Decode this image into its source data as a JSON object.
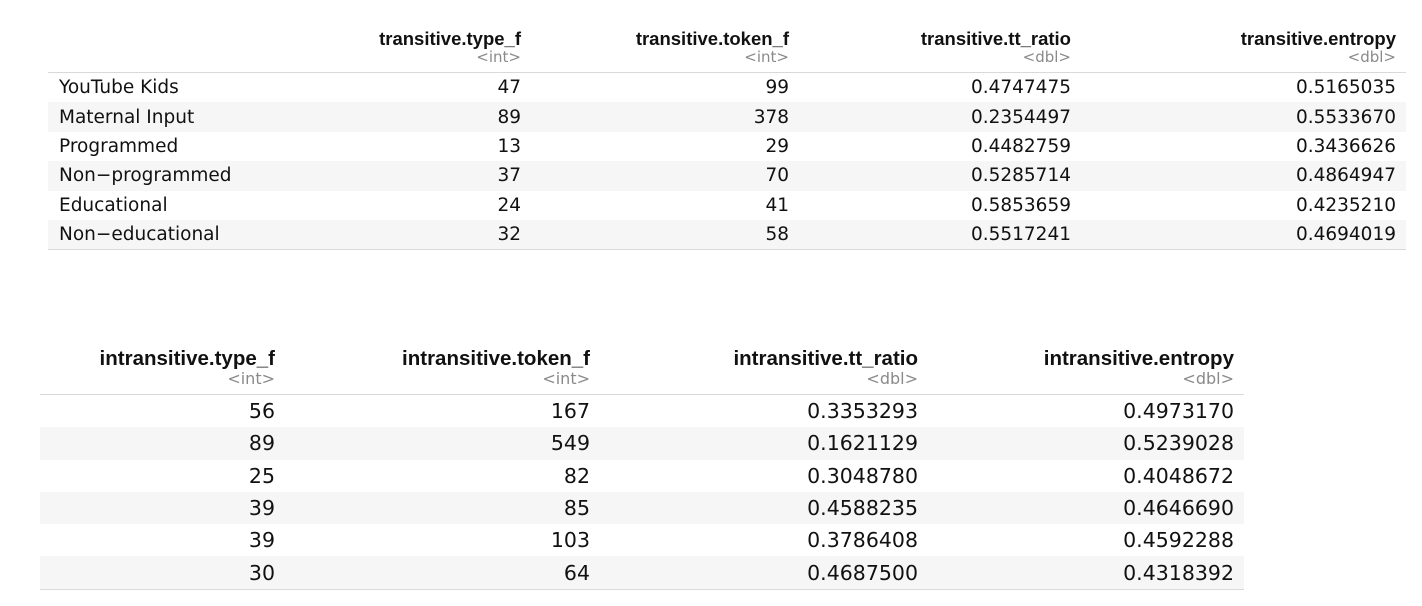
{
  "table1": {
    "columns": [
      {
        "name": "",
        "type": ""
      },
      {
        "name": "transitive.type_f",
        "type": "<int>"
      },
      {
        "name": "transitive.token_f",
        "type": "<int>"
      },
      {
        "name": "transitive.tt_ratio",
        "type": "<dbl>"
      },
      {
        "name": "transitive.entropy",
        "type": "<dbl>"
      }
    ],
    "rows": [
      [
        "YouTube Kids",
        "47",
        "99",
        "0.4747475",
        "0.5165035"
      ],
      [
        "Maternal Input",
        "89",
        "378",
        "0.2354497",
        "0.5533670"
      ],
      [
        "Programmed",
        "13",
        "29",
        "0.4482759",
        "0.3436626"
      ],
      [
        "Non−programmed",
        "37",
        "70",
        "0.5285714",
        "0.4864947"
      ],
      [
        "Educational",
        "24",
        "41",
        "0.5853659",
        "0.4235210"
      ],
      [
        "Non−educational",
        "32",
        "58",
        "0.5517241",
        "0.4694019"
      ]
    ]
  },
  "table2": {
    "columns": [
      {
        "name": "intransitive.type_f",
        "type": "<int>"
      },
      {
        "name": "intransitive.token_f",
        "type": "<int>"
      },
      {
        "name": "intransitive.tt_ratio",
        "type": "<dbl>"
      },
      {
        "name": "intransitive.entropy",
        "type": "<dbl>"
      }
    ],
    "rows": [
      [
        "56",
        "167",
        "0.3353293",
        "0.4973170"
      ],
      [
        "89",
        "549",
        "0.1621129",
        "0.5239028"
      ],
      [
        "25",
        "82",
        "0.3048780",
        "0.4048672"
      ],
      [
        "39",
        "85",
        "0.4588235",
        "0.4646690"
      ],
      [
        "39",
        "103",
        "0.3786408",
        "0.4592288"
      ],
      [
        "30",
        "64",
        "0.4687500",
        "0.4318392"
      ]
    ]
  }
}
